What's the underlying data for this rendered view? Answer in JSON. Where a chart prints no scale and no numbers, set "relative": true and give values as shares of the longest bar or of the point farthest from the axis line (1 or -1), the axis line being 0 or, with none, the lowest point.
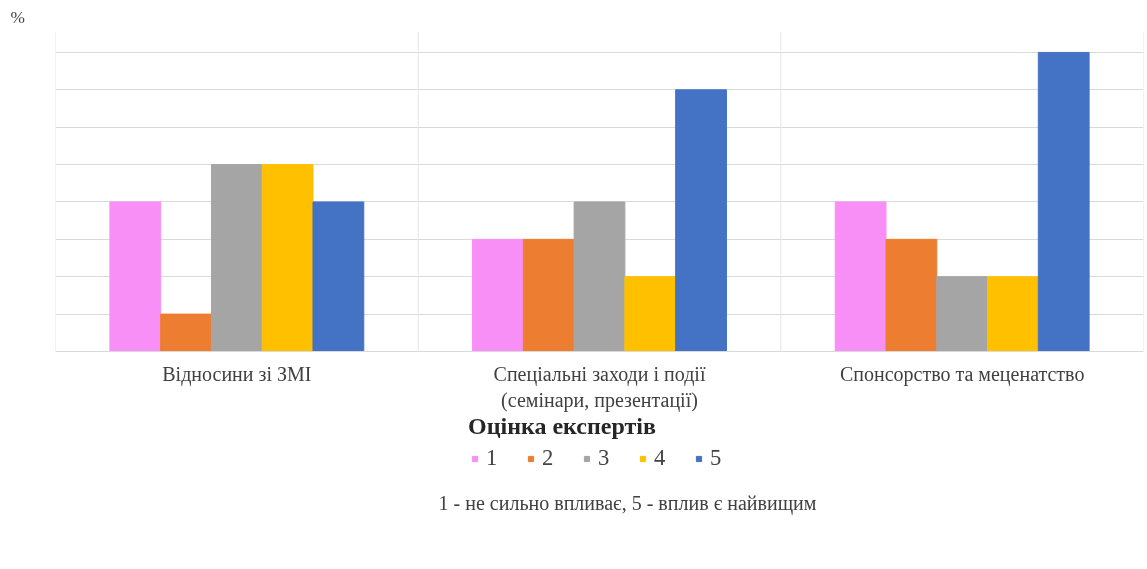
{
  "chart_data": {
    "type": "bar",
    "relative": true,
    "ylabel": "%",
    "legend_title": "Оцінка експертів",
    "legend": "bottom",
    "grid": true,
    "categories": [
      "Відносини зі ЗМІ",
      "Спеціальні заходи і події\n(семінари, презентації)",
      "Спонсорство та меценатство"
    ],
    "series": [
      {
        "name": "1",
        "color": "#f78ff7",
        "values": [
          0.5,
          0.375,
          0.5
        ]
      },
      {
        "name": "2",
        "color": "#ed7d31",
        "values": [
          0.125,
          0.375,
          0.375
        ]
      },
      {
        "name": "3",
        "color": "#a5a5a5",
        "values": [
          0.625,
          0.5,
          0.25
        ]
      },
      {
        "name": "4",
        "color": "#ffc000",
        "values": [
          0.625,
          0.25,
          0.25
        ]
      },
      {
        "name": "5",
        "color": "#4472c4",
        "values": [
          0.5,
          0.875,
          1
        ]
      }
    ],
    "annotations": [
      "1 - не сильно впливає, 5 - вплив є найвищим"
    ]
  }
}
